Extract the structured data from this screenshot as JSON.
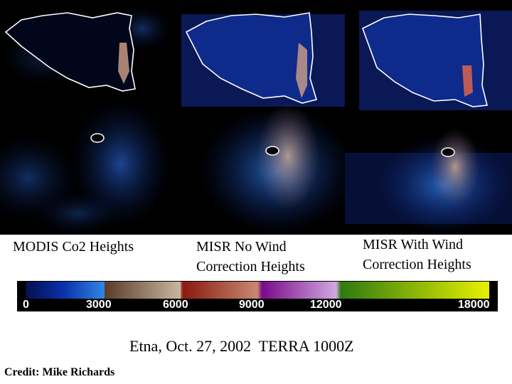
{
  "panels": [
    {
      "label": "MODIS Co2 Heights",
      "lines": [
        "MODIS Co2 Heights"
      ]
    },
    {
      "label": "MISR No Wind Correction Heights",
      "lines": [
        "MISR No Wind",
        "Correction Heights"
      ]
    },
    {
      "label": "MISR With Wind Correction Heights",
      "lines": [
        "MISR With Wind",
        "Correction Heights"
      ]
    }
  ],
  "colorbar": {
    "ticks": [
      "0",
      "3000",
      "6000",
      "9000",
      "12000",
      "18000"
    ],
    "colors": [
      "#05104a",
      "#0a2fa8",
      "#2f86e6",
      "#c8b8a0",
      "#8a1a10",
      "#c88870",
      "#7a0a8a",
      "#d0a8e0",
      "#2f7a10",
      "#e8f000"
    ]
  },
  "caption": "Etna, Oct. 27, 2002  TERRA 1000Z",
  "credit": "Credit: Mike Richards"
}
